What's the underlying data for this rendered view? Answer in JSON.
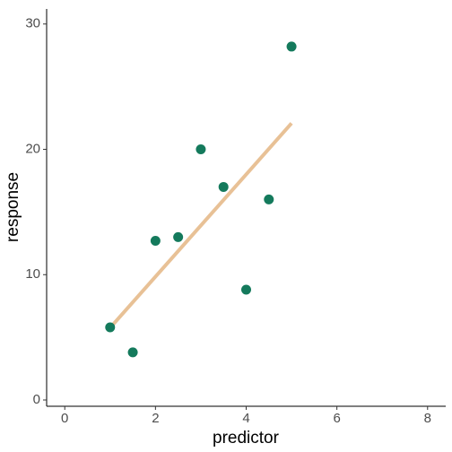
{
  "chart_data": {
    "type": "scatter",
    "x_label": "predictor",
    "y_label": "response",
    "series": [
      {
        "type": "scatter",
        "color": "#147a5c",
        "x": [
          1,
          1.5,
          2,
          2.5,
          3,
          3.5,
          4,
          4.5,
          5
        ],
        "values": [
          5.8,
          3.8,
          12.7,
          13,
          20,
          17,
          8.8,
          16,
          28.2
        ]
      },
      {
        "type": "line",
        "color": "#e8c196",
        "x": [
          1,
          5
        ],
        "values": [
          5.76,
          22.08
        ]
      }
    ],
    "xlim": [
      -0.4,
      8.4
    ],
    "xticks": [
      0,
      2,
      4,
      6,
      8
    ],
    "ylim": [
      -0.5,
      31.2
    ],
    "yticks": [
      0,
      10,
      20,
      30
    ],
    "grid": false
  }
}
